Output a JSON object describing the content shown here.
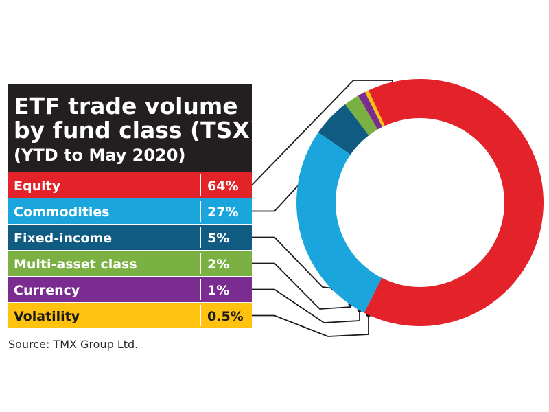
{
  "chart_data": {
    "type": "pie",
    "style": "donut",
    "title_lines": [
      "ETF trade volume",
      "by fund class (TSX)"
    ],
    "subtitle": "(YTD to May 2020)",
    "unit": "%",
    "categories": [
      "Equity",
      "Commodities",
      "Fixed-income",
      "Multi-asset class",
      "Currency",
      "Volatility"
    ],
    "values": [
      64,
      27,
      5,
      2,
      1,
      0.5
    ],
    "value_labels": [
      "64%",
      "27%",
      "5%",
      "2%",
      "1%",
      "0.5%"
    ],
    "colors": [
      "#e3222a",
      "#1aa6dc",
      "#0f5b82",
      "#7bb043",
      "#7b2c90",
      "#ffc20e"
    ],
    "source": "Source: TMX Group Ltd."
  }
}
